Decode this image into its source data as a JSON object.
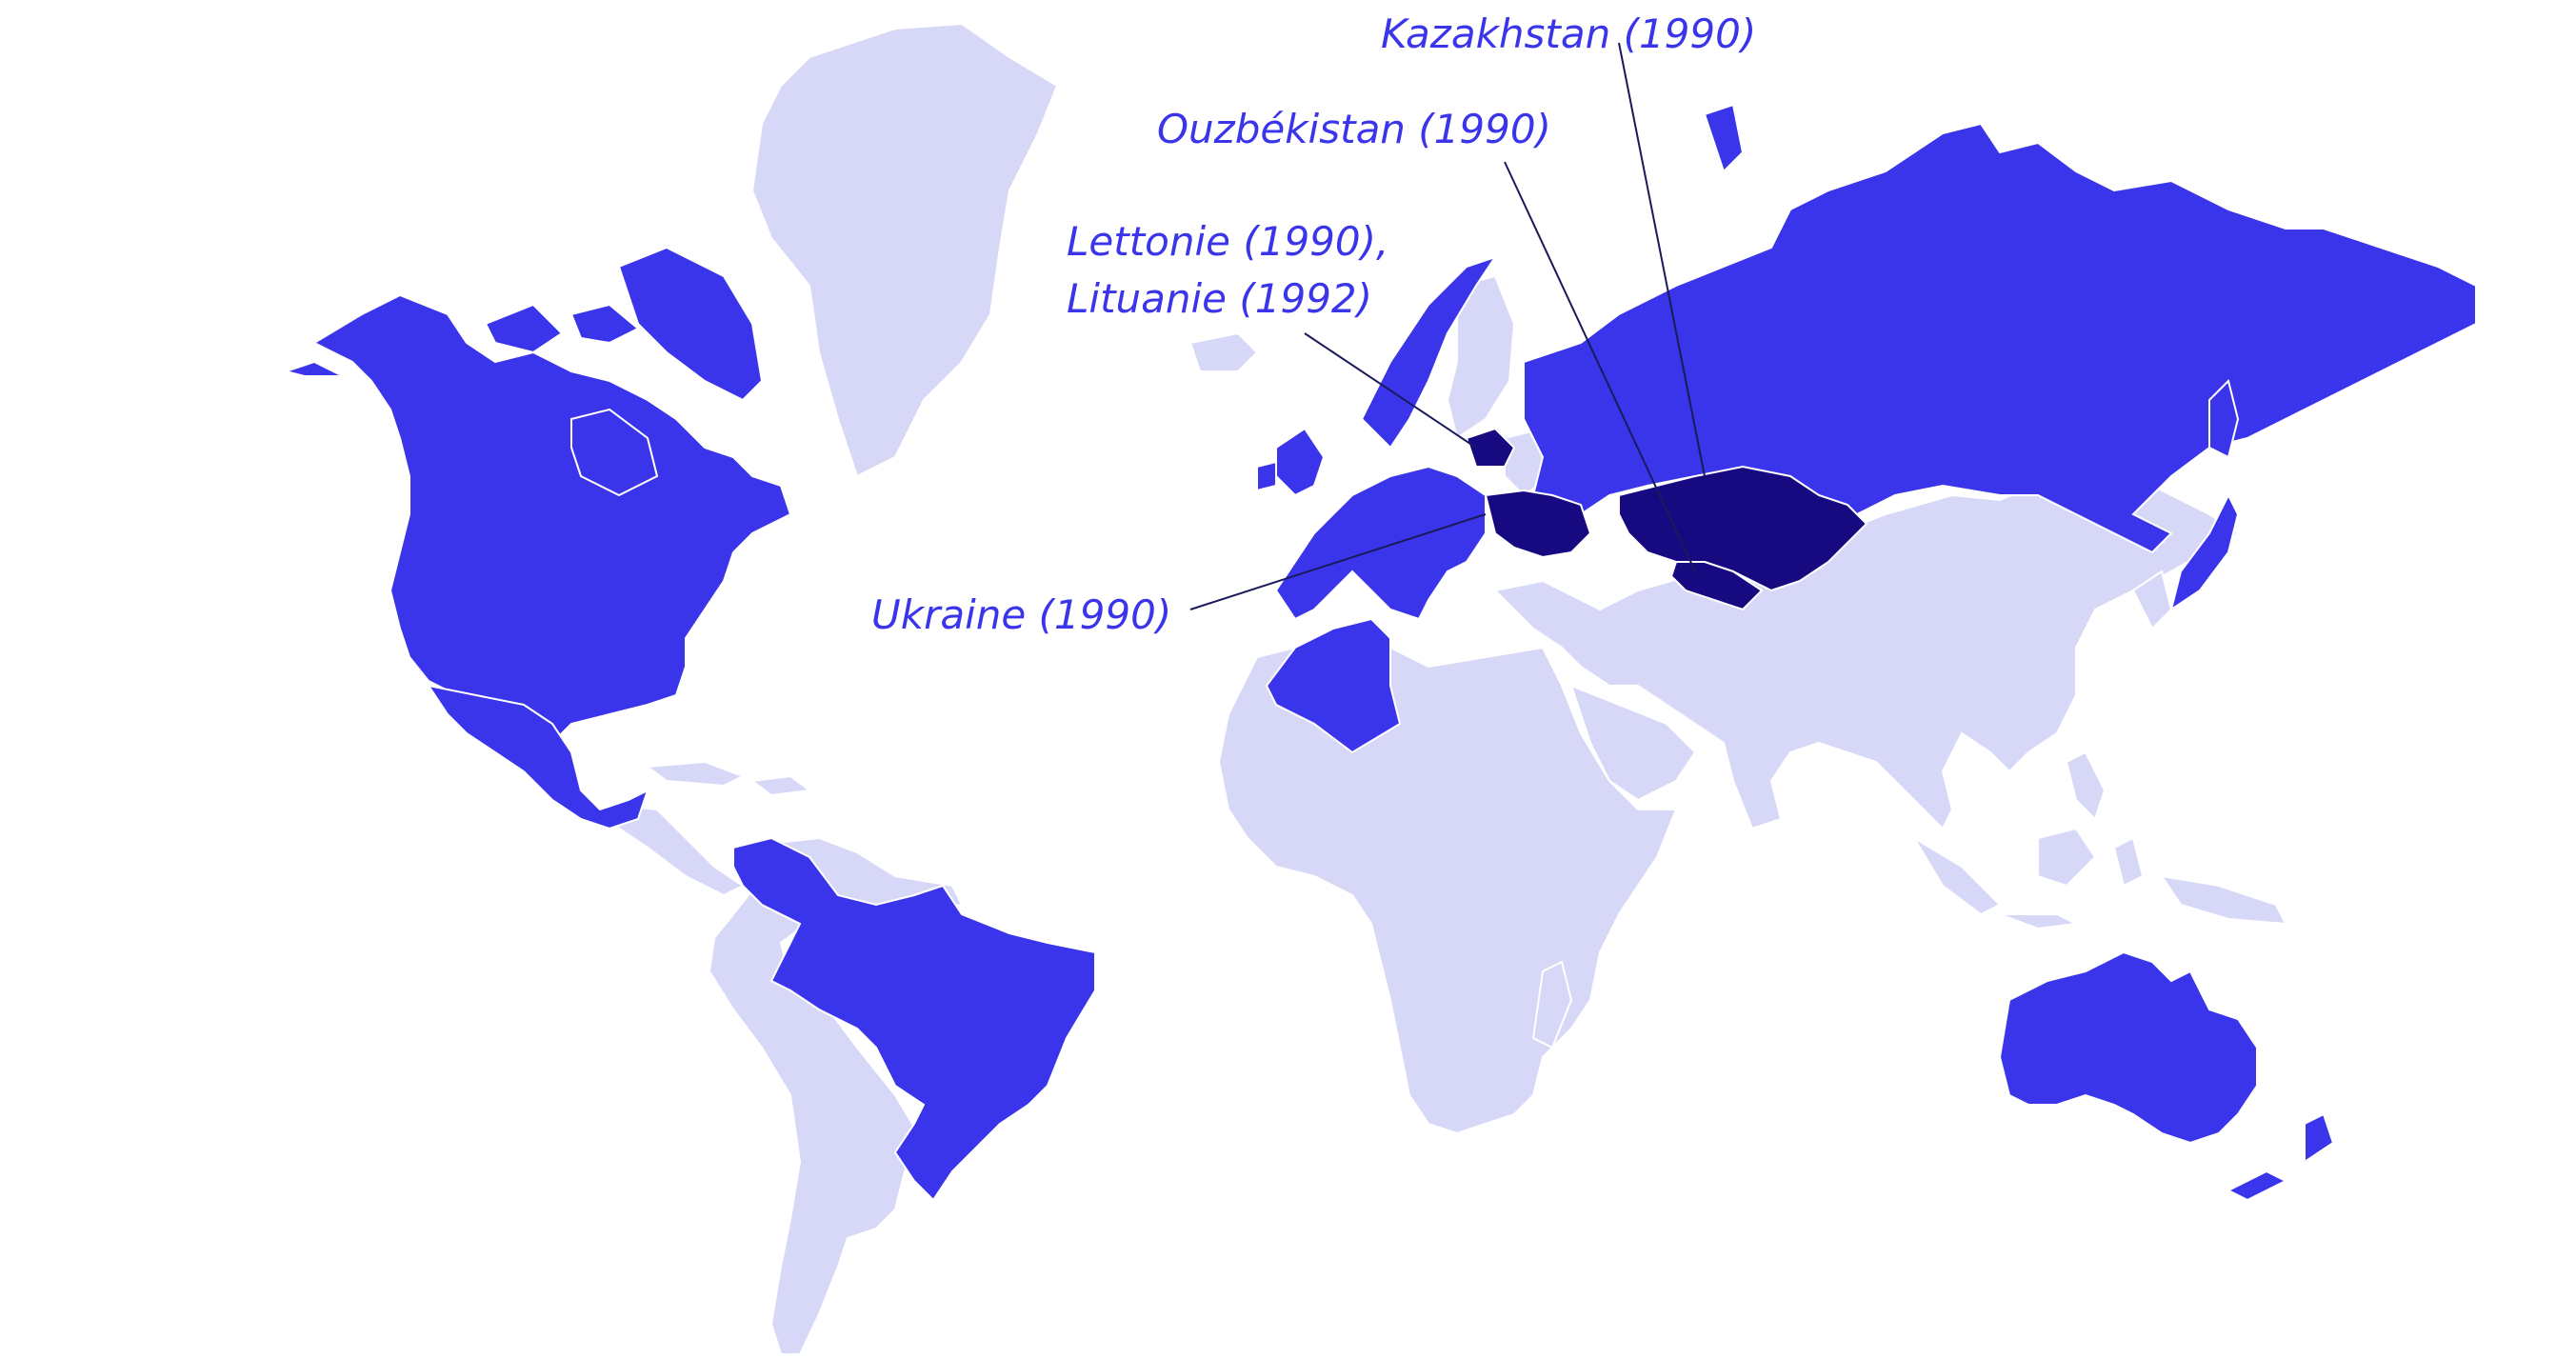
{
  "colors": {
    "background": "#ffffff",
    "land_light": "#d7d8f8",
    "land_medium": "#3a35ea",
    "land_dark": "#170a80",
    "border": "#ffffff",
    "label_text": "#3a35ea",
    "leader_line": "#1a1a5a"
  },
  "labels": {
    "kazakhstan": "Kazakhstan (1990)",
    "ouzbekistan": "Ouzbékistan (1990)",
    "lettonie_line1": "Lettonie (1990),",
    "lettonie_line2": "Lituanie (1992)",
    "ukraine": "Ukraine (1990)"
  }
}
